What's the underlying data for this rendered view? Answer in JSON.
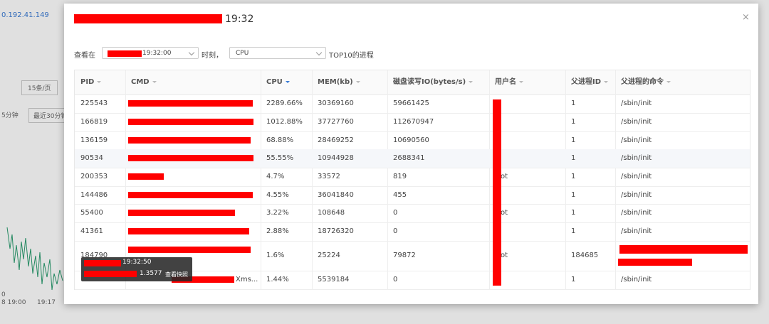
{
  "background": {
    "ip": "0.192.41.149",
    "page_size": "15条/页",
    "range_short": "5分钟",
    "range_long": "最近30分钟",
    "x_labels": [
      "8 19:00",
      "19:17"
    ],
    "y_label": "0"
  },
  "modal": {
    "title_time": "19:32",
    "filter": {
      "prefix": "查看在",
      "time": "19:32:00",
      "separator": "时刻，",
      "metric": "CPU",
      "suffix": "TOP10的进程"
    },
    "table": {
      "headers": {
        "pid": "PID",
        "cmd": "CMD",
        "cpu": "CPU",
        "mem": "MEM(kb)",
        "io": "磁盘读写IO(bytes/s)",
        "user": "用户名",
        "ppid": "父进程ID",
        "pcmd": "父进程的命令"
      },
      "rows": [
        {
          "pid": "225543",
          "cpu": "2289.66%",
          "mem": "30369160",
          "io": "59661425",
          "ppid": "1",
          "pcmd": "/sbin/init"
        },
        {
          "pid": "166819",
          "cpu": "1012.88%",
          "mem": "37727760",
          "io": "112670947",
          "ppid": "1",
          "pcmd": "/sbin/init"
        },
        {
          "pid": "136159",
          "cpu": "68.88%",
          "mem": "28469252",
          "io": "10690560",
          "ppid": "1",
          "pcmd": "/sbin/init"
        },
        {
          "pid": "90534",
          "cpu": "55.55%",
          "mem": "10944928",
          "io": "2688341",
          "ppid": "1",
          "pcmd": "/sbin/init"
        },
        {
          "pid": "200353",
          "cpu": "4.7%",
          "mem": "33572",
          "io": "819",
          "user": "root",
          "ppid": "1",
          "pcmd": "/sbin/init"
        },
        {
          "pid": "144486",
          "cpu": "4.55%",
          "mem": "36041840",
          "io": "455",
          "ppid": "1",
          "pcmd": "/sbin/init"
        },
        {
          "pid": "55400",
          "cpu": "3.22%",
          "mem": "108648",
          "io": "0",
          "user": "root",
          "ppid": "1",
          "pcmd": "/sbin/init"
        },
        {
          "pid": "41361",
          "cpu": "2.88%",
          "mem": "18726320",
          "io": "0",
          "ppid": "1",
          "pcmd": "/sbin/init"
        },
        {
          "pid": "184790",
          "cpu": "1.6%",
          "mem": "25224",
          "io": "79872",
          "user": "root",
          "ppid": "184685"
        },
        {
          "cmd": "Xms...",
          "cpu": "1.44%",
          "mem": "5539184",
          "io": "0",
          "ppid": "1",
          "pcmd": "/sbin/init"
        }
      ]
    },
    "tooltip": {
      "time": "19:32:50",
      "value": "1.3577",
      "link": "查看快照"
    }
  }
}
